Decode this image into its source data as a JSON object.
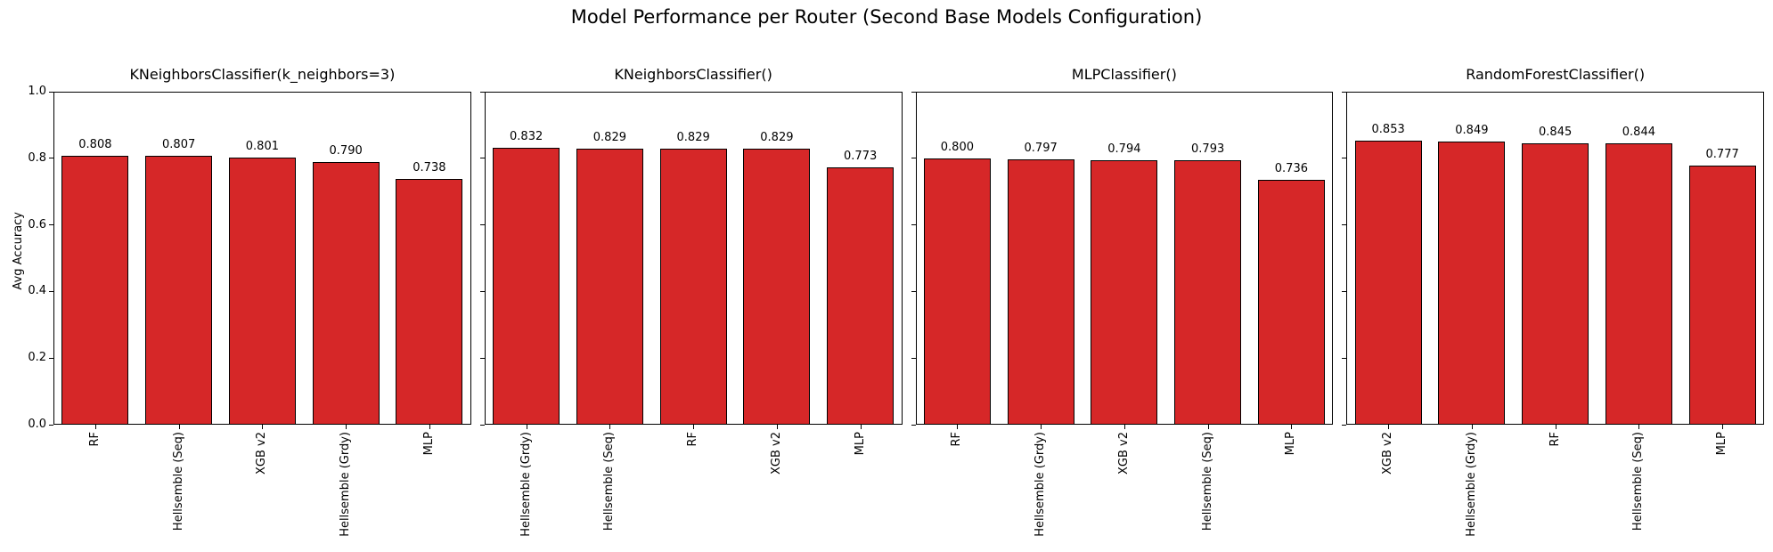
{
  "figure": {
    "title": "Model Performance per Router (Second Base Models Configuration)",
    "ylabel": "Avg Accuracy",
    "bar_color": "#d62728",
    "bar_edge_color": "#000000",
    "yticks": [
      0.0,
      0.2,
      0.4,
      0.6,
      0.8,
      1.0
    ],
    "ylim": [
      0,
      1
    ],
    "grid": false,
    "legend": "none"
  },
  "chart_data": [
    {
      "type": "bar",
      "title": "KNeighborsClassifier(k_neighbors=3)",
      "categories": [
        "RF",
        "Hellsemble (Seq)",
        "XGB v2",
        "Hellsemble (Grdy)",
        "MLP"
      ],
      "values": [
        0.808,
        0.807,
        0.801,
        0.79,
        0.738
      ],
      "xlabel": "",
      "ylabel": "Avg Accuracy",
      "ylim": [
        0,
        1
      ]
    },
    {
      "type": "bar",
      "title": "KNeighborsClassifier()",
      "categories": [
        "Hellsemble (Grdy)",
        "Hellsemble (Seq)",
        "RF",
        "XGB v2",
        "MLP"
      ],
      "values": [
        0.832,
        0.829,
        0.829,
        0.829,
        0.773
      ],
      "xlabel": "",
      "ylabel": "",
      "ylim": [
        0,
        1
      ]
    },
    {
      "type": "bar",
      "title": "MLPClassifier()",
      "categories": [
        "RF",
        "Hellsemble (Grdy)",
        "XGB v2",
        "Hellsemble (Seq)",
        "MLP"
      ],
      "values": [
        0.8,
        0.797,
        0.794,
        0.793,
        0.736
      ],
      "xlabel": "",
      "ylabel": "",
      "ylim": [
        0,
        1
      ]
    },
    {
      "type": "bar",
      "title": "RandomForestClassifier()",
      "categories": [
        "XGB v2",
        "Hellsemble (Grdy)",
        "RF",
        "Hellsemble (Seq)",
        "MLP"
      ],
      "values": [
        0.853,
        0.849,
        0.845,
        0.844,
        0.777
      ],
      "xlabel": "",
      "ylabel": "",
      "ylim": [
        0,
        1
      ]
    }
  ]
}
